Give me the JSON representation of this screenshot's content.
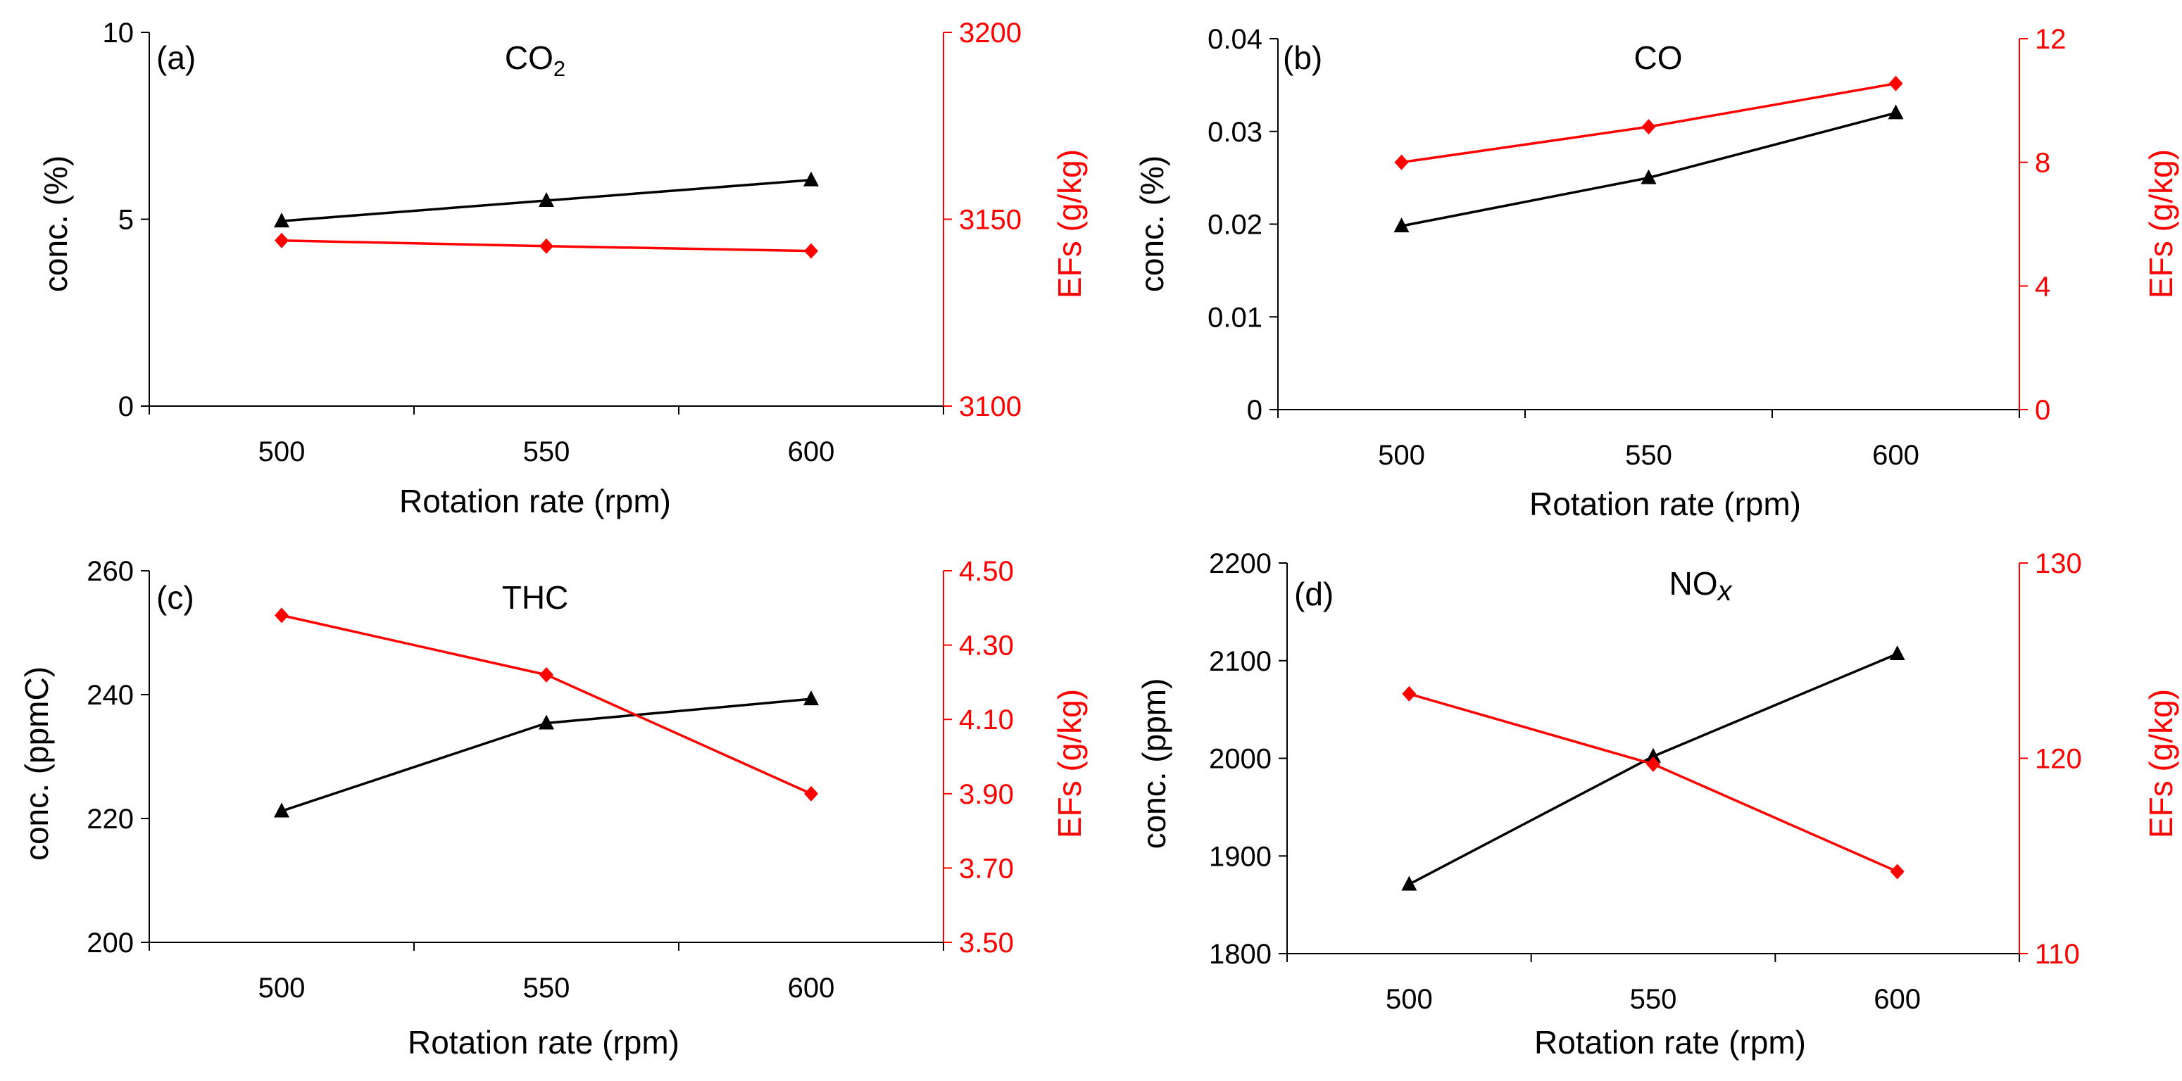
{
  "colors": {
    "conc": "#000000",
    "efs": "#ff0000",
    "axis": "#000000"
  },
  "chart_data": [
    {
      "type": "line",
      "panel_label": "(a)",
      "title": "CO",
      "title_subscript": "2",
      "title_italic_suffix": "",
      "xlabel": "Rotation rate (rpm)",
      "ylabel_left": "conc. (%)",
      "ylabel_right": "EFs (g/kg)",
      "x": [
        500,
        550,
        600
      ],
      "xlim": [
        475,
        625
      ],
      "xticks": [
        "500",
        "550",
        "600"
      ],
      "ylim_left": [
        0,
        10
      ],
      "yticks_left": [
        "0",
        "5",
        "10"
      ],
      "ylim_right": [
        3100,
        3200
      ],
      "yticks_right": [
        "3100",
        "3150",
        "3200"
      ],
      "series": [
        {
          "name": "conc.",
          "axis": "left",
          "marker": "triangle",
          "values": [
            4.95,
            5.5,
            6.05
          ]
        },
        {
          "name": "EFs",
          "axis": "right",
          "marker": "diamond",
          "values": [
            3144.3,
            3142.8,
            3141.5
          ]
        }
      ]
    },
    {
      "type": "line",
      "panel_label": "(b)",
      "title": "CO",
      "title_subscript": "",
      "title_italic_suffix": "",
      "xlabel": "Rotation rate (rpm)",
      "ylabel_left": "conc. (%)",
      "ylabel_right": "EFs (g/kg)",
      "x": [
        500,
        550,
        600
      ],
      "xlim": [
        475,
        625
      ],
      "xticks": [
        "500",
        "550",
        "600"
      ],
      "ylim_left": [
        0,
        0.04
      ],
      "yticks_left": [
        "0",
        "0.01",
        "0.02",
        "0.03",
        "0.04"
      ],
      "ylim_right": [
        0,
        12
      ],
      "yticks_right": [
        "0",
        "4",
        "8",
        "12"
      ],
      "series": [
        {
          "name": "conc.",
          "axis": "left",
          "marker": "triangle",
          "values": [
            0.0198,
            0.025,
            0.032
          ]
        },
        {
          "name": "EFs",
          "axis": "right",
          "marker": "diamond",
          "values": [
            8.0,
            9.15,
            10.55
          ]
        }
      ]
    },
    {
      "type": "line",
      "panel_label": "(c)",
      "title": "THC",
      "title_subscript": "",
      "title_italic_suffix": "",
      "xlabel": "Rotation rate (rpm)",
      "ylabel_left": "conc. (ppmC)",
      "ylabel_right": "EFs (g/kg)",
      "x": [
        500,
        550,
        600
      ],
      "xlim": [
        475,
        625
      ],
      "xticks": [
        "500",
        "550",
        "600"
      ],
      "ylim_left": [
        200,
        260
      ],
      "yticks_left": [
        "200",
        "220",
        "240",
        "260"
      ],
      "ylim_right": [
        3.5,
        4.5
      ],
      "yticks_right": [
        "3.50",
        "3.70",
        "3.90",
        "4.10",
        "4.30",
        "4.50"
      ],
      "series": [
        {
          "name": "conc.",
          "axis": "left",
          "marker": "triangle",
          "values": [
            221.2,
            235.4,
            239.3
          ]
        },
        {
          "name": "EFs",
          "axis": "right",
          "marker": "diamond",
          "values": [
            4.38,
            4.22,
            3.9
          ]
        }
      ]
    },
    {
      "type": "line",
      "panel_label": "(d)",
      "title": "NO",
      "title_subscript": "",
      "title_italic_suffix": "x",
      "xlabel": "Rotation rate (rpm)",
      "ylabel_left": "conc. (ppm)",
      "ylabel_right": "EFs (g/kg)",
      "x": [
        500,
        550,
        600
      ],
      "xlim": [
        475,
        625
      ],
      "xticks": [
        "500",
        "550",
        "600"
      ],
      "ylim_left": [
        1800,
        2200
      ],
      "yticks_left": [
        "1800",
        "1900",
        "2000",
        "2100",
        "2200"
      ],
      "ylim_right": [
        110,
        130
      ],
      "yticks_right": [
        "110",
        "120",
        "130"
      ],
      "series": [
        {
          "name": "conc.",
          "axis": "left",
          "marker": "triangle",
          "values": [
            1871,
            2002,
            2107
          ]
        },
        {
          "name": "EFs",
          "axis": "right",
          "marker": "diamond",
          "values": [
            123.3,
            119.7,
            114.2
          ]
        }
      ]
    }
  ]
}
